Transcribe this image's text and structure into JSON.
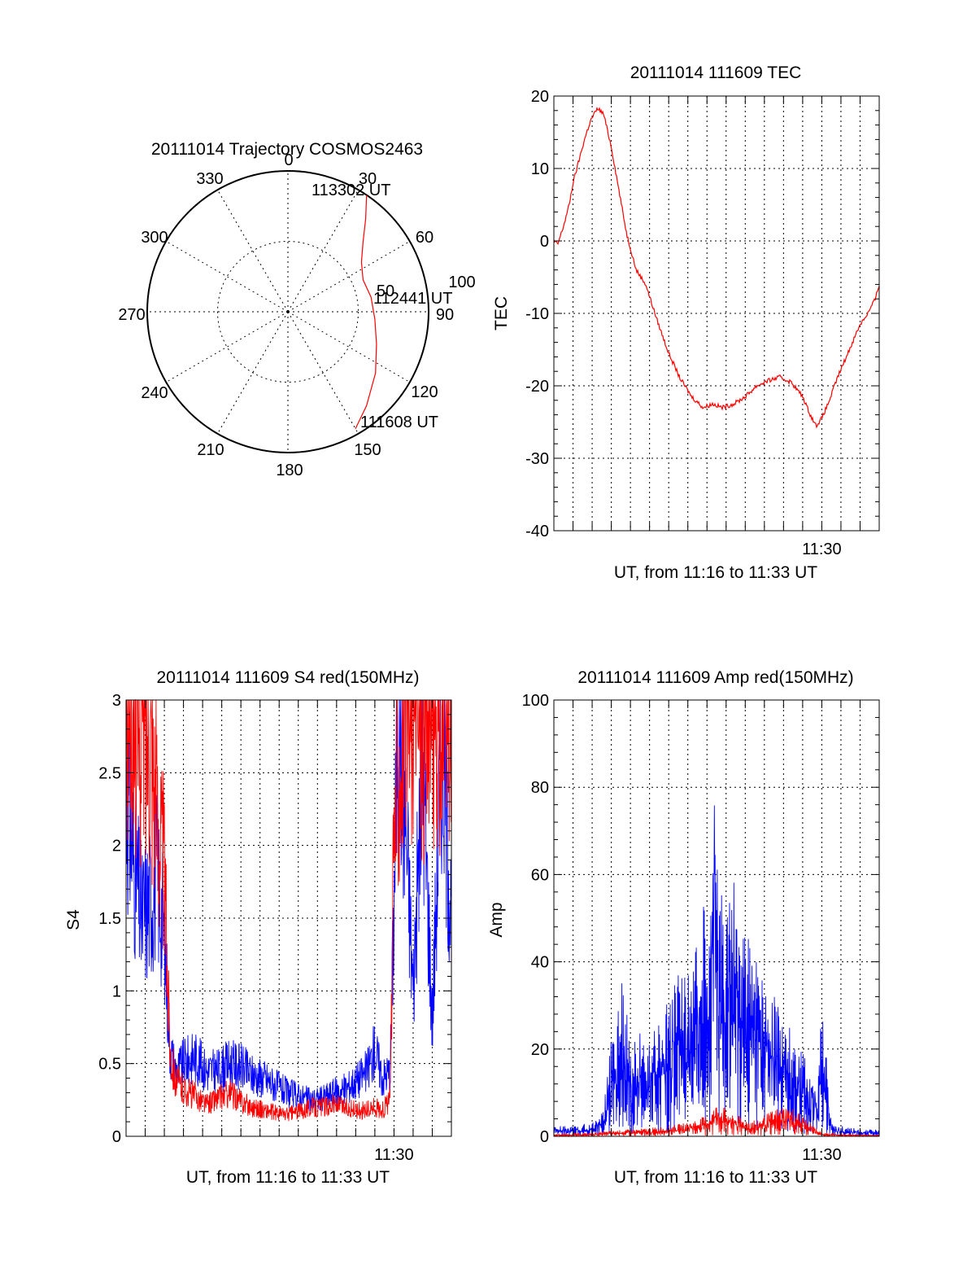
{
  "chart_data": [
    {
      "id": "trajectory",
      "type": "polar",
      "title": "20111014 Trajectory COSMOS2463",
      "azimuth_labels": [
        "0",
        "30",
        "60",
        "90",
        "120",
        "150",
        "180",
        "210",
        "240",
        "270",
        "300",
        "330"
      ],
      "radial_labels": [
        "50",
        "100"
      ],
      "rmax": 100,
      "rings": [
        50,
        100
      ],
      "track": {
        "color": "#ff0000",
        "points": [
          [
            34,
            100
          ],
          [
            40,
            86
          ],
          [
            47,
            73
          ],
          [
            56,
            63
          ],
          [
            67,
            58
          ],
          [
            80,
            60
          ],
          [
            95,
            62
          ],
          [
            110,
            67
          ],
          [
            125,
            76
          ],
          [
            140,
            87
          ],
          [
            150,
            96
          ]
        ]
      },
      "labels": {
        "end": "113302 UT",
        "mid": "112441 UT",
        "start": "111608 UT"
      }
    },
    {
      "id": "tec",
      "type": "line",
      "title": "20111014 111609 TEC",
      "ylabel": "TEC",
      "xlabel": "UT, from 11:16 to 11:33 UT",
      "xtick_labels": [
        "11:30"
      ],
      "yticks": [
        "20",
        "10",
        "0",
        "-10",
        "-20",
        "-30",
        "-40"
      ],
      "ylim": [
        -40,
        20
      ],
      "xlim_minutes": [
        16.0,
        33.0
      ],
      "label_tick_minute": 30,
      "series": [
        {
          "color": "#ff0000",
          "x": [
            16.0,
            16.2,
            16.5,
            16.8,
            17.0,
            17.3,
            17.6,
            17.9,
            18.1,
            18.3,
            18.6,
            19.0,
            19.4,
            19.8,
            20.3,
            20.8,
            21.4,
            22.0,
            22.6,
            23.2,
            23.8,
            24.3,
            24.8,
            25.4,
            26.0,
            26.6,
            27.2,
            27.8,
            28.4,
            29.0,
            29.4,
            29.7,
            30.0,
            30.4,
            30.8,
            31.2,
            31.6,
            32.0,
            32.4,
            32.8,
            33.0
          ],
          "y": [
            0,
            -0.5,
            2,
            5,
            8,
            11,
            14,
            16.5,
            17.5,
            18.3,
            17.5,
            13,
            7,
            1,
            -4,
            -6,
            -11,
            -15.5,
            -19,
            -21.5,
            -23,
            -22.5,
            -23,
            -22.5,
            -21.5,
            -20,
            -19.3,
            -18.8,
            -19.5,
            -21.5,
            -24,
            -25.5,
            -24.5,
            -22,
            -19,
            -16.5,
            -14,
            -11.5,
            -10,
            -8,
            -6
          ]
        }
      ]
    },
    {
      "id": "s4",
      "type": "line",
      "title": "20111014 111609 S4 red(150MHz)",
      "ylabel": "S4",
      "xlabel": "UT, from 11:16 to 11:33 UT",
      "xtick_labels": [
        "11:30"
      ],
      "yticks": [
        "3",
        "2.5",
        "2",
        "1.5",
        "1",
        "0.5",
        "0"
      ],
      "ylim": [
        0,
        3
      ],
      "xlim_minutes": [
        16.0,
        33.0
      ],
      "label_tick_minute": 30,
      "series": [
        {
          "color": "#0000ff",
          "x": [
            16.0,
            16.4,
            16.8,
            17.2,
            17.6,
            18.0,
            18.3,
            18.6,
            19.0,
            19.6,
            20.2,
            20.8,
            21.4,
            22.0,
            22.6,
            23.2,
            23.8,
            24.4,
            25.0,
            25.6,
            26.2,
            26.8,
            27.4,
            28.0,
            28.6,
            29.0,
            29.4,
            29.8,
            30.0,
            30.2,
            30.6,
            31.0,
            31.5,
            32.0,
            32.5,
            33.0
          ],
          "y": [
            2.4,
            1.9,
            1.5,
            1.6,
            1.8,
            1.4,
            0.6,
            0.45,
            0.5,
            0.55,
            0.45,
            0.45,
            0.5,
            0.48,
            0.42,
            0.4,
            0.35,
            0.3,
            0.28,
            0.25,
            0.26,
            0.3,
            0.32,
            0.38,
            0.45,
            0.6,
            0.4,
            0.45,
            1.6,
            3.0,
            2.2,
            1.0,
            2.6,
            0.8,
            2.8,
            1.5
          ]
        },
        {
          "color": "#ff0000",
          "x": [
            16.0,
            16.4,
            16.8,
            17.2,
            17.6,
            18.0,
            18.3,
            18.6,
            19.0,
            19.6,
            20.2,
            20.8,
            21.4,
            22.0,
            22.6,
            23.2,
            23.8,
            24.4,
            25.0,
            25.6,
            26.2,
            26.8,
            27.4,
            28.0,
            28.6,
            29.0,
            29.4,
            29.8,
            30.0,
            30.2,
            30.6,
            31.0,
            31.5,
            32.0,
            32.5,
            33.0
          ],
          "y": [
            2.9,
            3.0,
            2.7,
            2.9,
            2.3,
            1.8,
            0.6,
            0.38,
            0.32,
            0.28,
            0.22,
            0.26,
            0.3,
            0.24,
            0.2,
            0.18,
            0.16,
            0.15,
            0.17,
            0.2,
            0.2,
            0.22,
            0.2,
            0.18,
            0.18,
            0.2,
            0.18,
            0.25,
            2.0,
            2.6,
            2.9,
            3.0,
            2.8,
            3.0,
            2.7,
            2.9
          ]
        }
      ]
    },
    {
      "id": "amp",
      "type": "line",
      "title": "20111014 111609 Amp red(150MHz)",
      "ylabel": "Amp",
      "xlabel": "UT, from 11:16 to 11:33 UT",
      "xtick_labels": [
        "11:30"
      ],
      "yticks": [
        "100",
        "80",
        "60",
        "40",
        "20",
        "0"
      ],
      "ylim": [
        0,
        100
      ],
      "xlim_minutes": [
        16.0,
        33.0
      ],
      "label_tick_minute": 30,
      "series": [
        {
          "color": "#0000ff",
          "x": [
            16.0,
            17.0,
            18.0,
            18.6,
            19.0,
            19.6,
            20.0,
            20.6,
            21.0,
            21.6,
            22.0,
            22.6,
            23.0,
            23.6,
            24.0,
            24.4,
            24.6,
            25.0,
            25.6,
            26.0,
            26.6,
            27.0,
            27.6,
            28.0,
            28.6,
            29.0,
            29.4,
            29.8,
            30.0,
            30.5,
            31.0,
            32.0,
            33.0
          ],
          "y": [
            1.5,
            1.5,
            2,
            4,
            14,
            24,
            12,
            16,
            13,
            18,
            20,
            24,
            26,
            30,
            36,
            60,
            32,
            42,
            35,
            30,
            28,
            24,
            20,
            18,
            14,
            12,
            10,
            8,
            20,
            2,
            1.5,
            1,
            1
          ]
        },
        {
          "color": "#ff0000",
          "x": [
            16.0,
            17.0,
            18.0,
            19.0,
            20.0,
            21.0,
            22.0,
            23.0,
            24.0,
            24.6,
            25.0,
            25.6,
            26.0,
            26.6,
            27.0,
            27.6,
            28.0,
            28.6,
            29.0,
            29.4,
            29.8,
            30.0,
            31.0,
            33.0
          ],
          "y": [
            0.3,
            0.4,
            0.5,
            0.8,
            1.0,
            1.2,
            1.5,
            2,
            3,
            5,
            4,
            3,
            2.5,
            2.5,
            3,
            4,
            4.5,
            4,
            3,
            2,
            1,
            0.5,
            0.3,
            0.2
          ]
        }
      ]
    }
  ]
}
